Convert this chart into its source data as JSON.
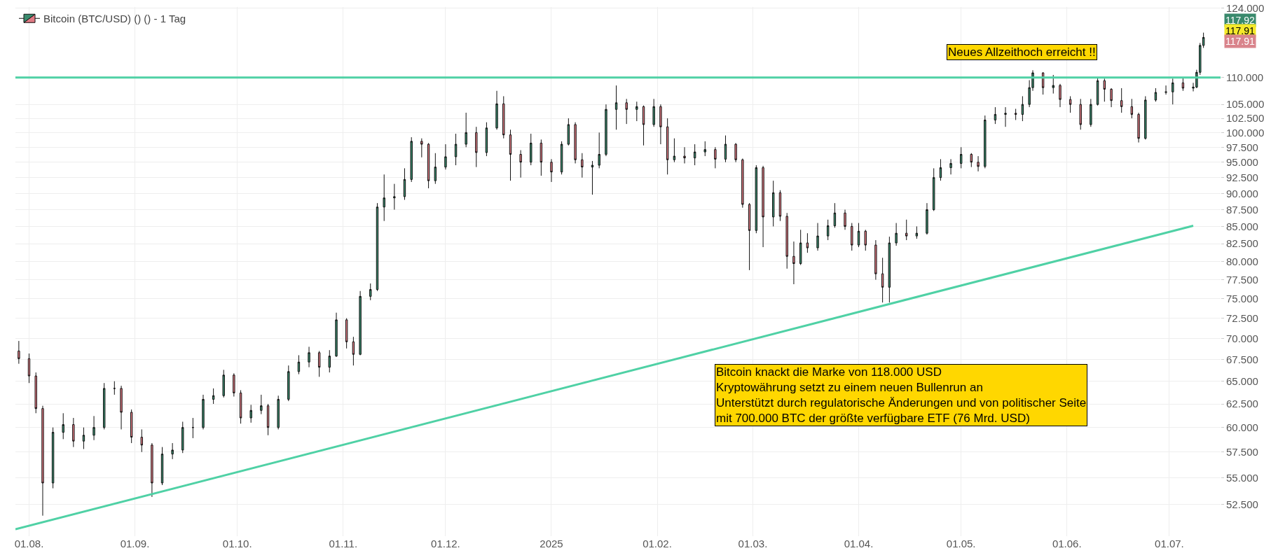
{
  "chart_data": {
    "type": "candlestick",
    "log": "y",
    "grid": true,
    "legend": "top left",
    "xlim": [
      "2024-07-28",
      "2025-07-16"
    ],
    "xticks": [
      {
        "value": "2024-08-01",
        "label": "01.08."
      },
      {
        "value": "2024-09-01",
        "label": "01.09."
      },
      {
        "value": "2024-10-01",
        "label": "01.10."
      },
      {
        "value": "2024-11-01",
        "label": "01.11."
      },
      {
        "value": "2024-12-01",
        "label": "01.12."
      },
      {
        "value": "2025-01-01",
        "label": "2025"
      },
      {
        "value": "2025-02-01",
        "label": "01.02."
      },
      {
        "value": "2025-03-01",
        "label": "01.03."
      },
      {
        "value": "2025-04-01",
        "label": "01.04."
      },
      {
        "value": "2025-05-01",
        "label": "01.05."
      },
      {
        "value": "2025-06-01",
        "label": "01.06."
      },
      {
        "value": "2025-07-01",
        "label": "01.07."
      }
    ],
    "ylim": [
      49.7,
      124.3
    ],
    "yticks": [
      {
        "value": 52.5,
        "label": "52.500"
      },
      {
        "value": 55,
        "label": "55.000"
      },
      {
        "value": 57.5,
        "label": "57.500"
      },
      {
        "value": 60,
        "label": "60.000"
      },
      {
        "value": 62.5,
        "label": "62.500"
      },
      {
        "value": 65,
        "label": "65.000"
      },
      {
        "value": 67.5,
        "label": "67.500"
      },
      {
        "value": 70,
        "label": "70.000"
      },
      {
        "value": 72.5,
        "label": "72.500"
      },
      {
        "value": 75,
        "label": "75.000"
      },
      {
        "value": 77.5,
        "label": "77.500"
      },
      {
        "value": 80,
        "label": "80.000"
      },
      {
        "value": 82.5,
        "label": "82.500"
      },
      {
        "value": 85,
        "label": "85.000"
      },
      {
        "value": 87.5,
        "label": "87.500"
      },
      {
        "value": 90,
        "label": "90.000"
      },
      {
        "value": 92.5,
        "label": "92.500"
      },
      {
        "value": 95,
        "label": "95.000"
      },
      {
        "value": 97.5,
        "label": "97.500"
      },
      {
        "value": 100,
        "label": "100.000"
      },
      {
        "value": 102.5,
        "label": "102.500"
      },
      {
        "value": 105,
        "label": "105.000"
      },
      {
        "value": 110,
        "label": "110.000"
      },
      {
        "value": 124,
        "label": "124.000"
      }
    ],
    "ref_lines": [
      {
        "axis": "y",
        "value": 110,
        "color": "#4fd1a5"
      }
    ],
    "annotations": [
      "Neues Allzeithoch erreicht !!",
      "117.92",
      "117.91",
      "117.91",
      "Bitcoin knackt die Marke von 118.000 USD\nKryptowährung setzt zu einem neuen Bullenrun an\nUnterstützt durch regulatorische Änderungen und von politischer Seite\nmit 700.000 BTC der größte verfügbare ETF (76 Mrd. USD)"
    ],
    "series": [
      {
        "name": "Bitcoin (BTC/USD) () () - 1 Tag",
        "type": "candlestick",
        "x": [
          "2024-07-29",
          "2024-08-01",
          "2024-08-03",
          "2024-08-05",
          "2024-08-08",
          "2024-08-11",
          "2024-08-14",
          "2024-08-17",
          "2024-08-20",
          "2024-08-23",
          "2024-08-26",
          "2024-08-28",
          "2024-08-31",
          "2024-09-03",
          "2024-09-06",
          "2024-09-09",
          "2024-09-12",
          "2024-09-15",
          "2024-09-18",
          "2024-09-21",
          "2024-09-24",
          "2024-09-27",
          "2024-09-30",
          "2024-10-02",
          "2024-10-05",
          "2024-10-08",
          "2024-10-10",
          "2024-10-13",
          "2024-10-16",
          "2024-10-19",
          "2024-10-22",
          "2024-10-25",
          "2024-10-28",
          "2024-10-30",
          "2024-11-02",
          "2024-11-04",
          "2024-11-06",
          "2024-11-09",
          "2024-11-11",
          "2024-11-13",
          "2024-11-16",
          "2024-11-19",
          "2024-11-21",
          "2024-11-24",
          "2024-11-26",
          "2024-11-28",
          "2024-12-01",
          "2024-12-04",
          "2024-12-07",
          "2024-12-10",
          "2024-12-13",
          "2024-12-16",
          "2024-12-18",
          "2024-12-20",
          "2024-12-23",
          "2024-12-26",
          "2024-12-29",
          "2025-01-01",
          "2025-01-04",
          "2025-01-06",
          "2025-01-08",
          "2025-01-10",
          "2025-01-13",
          "2025-01-15",
          "2025-01-17",
          "2025-01-20",
          "2025-01-23",
          "2025-01-26",
          "2025-01-28",
          "2025-01-31",
          "2025-02-02",
          "2025-02-04",
          "2025-02-06",
          "2025-02-09",
          "2025-02-12",
          "2025-02-15",
          "2025-02-18",
          "2025-02-21",
          "2025-02-24",
          "2025-02-26",
          "2025-02-28",
          "2025-03-02",
          "2025-03-04",
          "2025-03-07",
          "2025-03-09",
          "2025-03-11",
          "2025-03-13",
          "2025-03-15",
          "2025-03-17",
          "2025-03-20",
          "2025-03-23",
          "2025-03-25",
          "2025-03-28",
          "2025-03-30",
          "2025-04-01",
          "2025-04-03",
          "2025-04-06",
          "2025-04-08",
          "2025-04-10",
          "2025-04-12",
          "2025-04-15",
          "2025-04-18",
          "2025-04-21",
          "2025-04-23",
          "2025-04-25",
          "2025-04-28",
          "2025-05-01",
          "2025-05-04",
          "2025-05-06",
          "2025-05-08",
          "2025-05-11",
          "2025-05-14",
          "2025-05-17",
          "2025-05-19",
          "2025-05-21",
          "2025-05-22",
          "2025-05-25",
          "2025-05-28",
          "2025-05-30",
          "2025-06-02",
          "2025-06-05",
          "2025-06-08",
          "2025-06-10",
          "2025-06-12",
          "2025-06-14",
          "2025-06-17",
          "2025-06-20",
          "2025-06-22",
          "2025-06-24",
          "2025-06-27",
          "2025-06-30",
          "2025-07-02",
          "2025-07-05",
          "2025-07-08",
          "2025-07-09",
          "2025-07-10",
          "2025-07-11"
        ],
        "ohlc": [
          [
            68.5,
            69.7,
            67.0,
            67.6
          ],
          [
            67.6,
            68.2,
            64.8,
            65.6
          ],
          [
            65.6,
            66.0,
            61.5,
            62.0
          ],
          [
            62.0,
            62.3,
            51.5,
            54.5
          ],
          [
            54.5,
            60.0,
            54.0,
            59.5
          ],
          [
            59.5,
            61.5,
            58.8,
            60.3
          ],
          [
            60.3,
            61.0,
            58.0,
            58.6
          ],
          [
            58.6,
            60.0,
            57.8,
            59.2
          ],
          [
            59.2,
            61.2,
            58.7,
            60.0
          ],
          [
            60.0,
            64.8,
            59.8,
            64.2
          ],
          [
            64.2,
            65.0,
            63.5,
            64.2
          ],
          [
            64.2,
            64.5,
            59.8,
            61.6
          ],
          [
            61.6,
            61.9,
            58.4,
            59.0
          ],
          [
            59.0,
            59.8,
            57.5,
            58.2
          ],
          [
            58.2,
            58.4,
            53.2,
            54.5
          ],
          [
            54.5,
            58.0,
            54.3,
            57.3
          ],
          [
            57.3,
            58.4,
            56.8,
            57.7
          ],
          [
            57.7,
            60.6,
            57.4,
            60.0
          ],
          [
            60.0,
            61.0,
            58.9,
            60.0
          ],
          [
            60.0,
            63.5,
            59.8,
            63.0
          ],
          [
            63.0,
            64.2,
            62.5,
            63.4
          ],
          [
            63.4,
            66.3,
            63.2,
            65.7
          ],
          [
            65.7,
            65.9,
            63.3,
            63.7
          ],
          [
            63.7,
            64.0,
            60.4,
            61.0
          ],
          [
            61.0,
            62.4,
            60.5,
            61.8
          ],
          [
            61.8,
            63.5,
            61.4,
            62.3
          ],
          [
            62.3,
            62.5,
            59.2,
            60.0
          ],
          [
            60.0,
            63.4,
            59.8,
            63.0
          ],
          [
            63.0,
            66.8,
            62.8,
            66.1
          ],
          [
            66.1,
            68.0,
            65.8,
            67.2
          ],
          [
            67.2,
            69.0,
            66.6,
            68.3
          ],
          [
            68.3,
            68.5,
            65.5,
            66.6
          ],
          [
            66.6,
            68.6,
            66.0,
            67.9
          ],
          [
            67.9,
            73.2,
            67.8,
            72.3
          ],
          [
            72.3,
            72.5,
            68.8,
            69.6
          ],
          [
            69.6,
            70.2,
            66.8,
            68.1
          ],
          [
            68.1,
            76.0,
            68.0,
            75.3
          ],
          [
            75.3,
            77.0,
            74.8,
            76.2
          ],
          [
            76.2,
            88.5,
            76.0,
            87.9
          ],
          [
            87.9,
            93.0,
            85.8,
            89.3
          ],
          [
            89.3,
            91.5,
            87.5,
            89.5
          ],
          [
            89.5,
            94.0,
            89.0,
            92.2
          ],
          [
            92.2,
            99.2,
            91.8,
            98.5
          ],
          [
            98.5,
            99.0,
            95.8,
            98.0
          ],
          [
            98.0,
            98.2,
            90.8,
            92.0
          ],
          [
            92.0,
            96.5,
            91.5,
            94.2
          ],
          [
            94.2,
            98.0,
            93.8,
            95.9
          ],
          [
            95.9,
            99.8,
            94.5,
            98.0
          ],
          [
            98.0,
            103.5,
            97.5,
            100.0
          ],
          [
            100.0,
            101.0,
            94.2,
            96.6
          ],
          [
            96.6,
            101.8,
            96.0,
            100.8
          ],
          [
            100.8,
            107.5,
            100.5,
            105.1
          ],
          [
            105.1,
            106.5,
            99.0,
            99.6
          ],
          [
            99.6,
            100.5,
            92.0,
            96.3
          ],
          [
            96.3,
            97.0,
            92.5,
            95.0
          ],
          [
            95.0,
            99.8,
            94.5,
            98.2
          ],
          [
            98.2,
            98.8,
            92.8,
            95.0
          ],
          [
            95.0,
            95.5,
            91.8,
            93.4
          ],
          [
            93.4,
            98.5,
            93.0,
            98.0
          ],
          [
            98.0,
            102.5,
            97.8,
            101.4
          ],
          [
            101.4,
            101.8,
            94.8,
            95.4
          ],
          [
            95.4,
            96.5,
            92.5,
            94.2
          ],
          [
            94.2,
            95.2,
            89.8,
            94.5
          ],
          [
            94.5,
            100.0,
            94.0,
            96.3
          ],
          [
            96.3,
            105.0,
            96.0,
            104.1
          ],
          [
            104.1,
            108.5,
            100.5,
            105.3
          ],
          [
            105.3,
            106.0,
            101.5,
            104.1
          ],
          [
            104.1,
            105.5,
            102.0,
            104.6
          ],
          [
            104.6,
            104.8,
            97.8,
            101.4
          ],
          [
            101.4,
            106.0,
            101.0,
            104.6
          ],
          [
            104.6,
            105.0,
            98.0,
            101.0
          ],
          [
            101.0,
            102.5,
            93.0,
            95.4
          ],
          [
            95.4,
            99.0,
            95.0,
            96.0
          ],
          [
            96.0,
            97.5,
            94.8,
            95.7
          ],
          [
            95.7,
            98.0,
            94.5,
            96.7
          ],
          [
            96.7,
            98.5,
            96.0,
            97.1
          ],
          [
            97.1,
            97.5,
            94.0,
            95.5
          ],
          [
            95.5,
            99.5,
            95.0,
            98.0
          ],
          [
            98.0,
            98.2,
            95.0,
            95.4
          ],
          [
            95.4,
            95.6,
            87.8,
            88.3
          ],
          [
            88.3,
            88.5,
            78.8,
            84.4
          ],
          [
            84.4,
            94.5,
            84.0,
            94.1
          ],
          [
            94.1,
            94.4,
            82.0,
            86.4
          ],
          [
            86.4,
            92.0,
            85.0,
            90.1
          ],
          [
            90.1,
            90.5,
            85.8,
            86.5
          ],
          [
            86.5,
            87.0,
            79.0,
            80.7
          ],
          [
            80.7,
            82.8,
            76.9,
            79.7
          ],
          [
            79.7,
            84.5,
            79.5,
            82.6
          ],
          [
            82.6,
            84.0,
            81.2,
            81.9
          ],
          [
            81.9,
            85.5,
            81.5,
            83.6
          ],
          [
            83.6,
            86.0,
            83.0,
            85.1
          ],
          [
            85.1,
            88.5,
            84.8,
            87.0
          ],
          [
            87.0,
            87.5,
            84.5,
            85.0
          ],
          [
            85.0,
            85.5,
            81.5,
            82.3
          ],
          [
            82.3,
            85.5,
            82.0,
            84.3
          ],
          [
            84.3,
            84.5,
            81.5,
            82.3
          ],
          [
            82.3,
            83.0,
            77.5,
            78.3
          ],
          [
            78.3,
            80.5,
            74.5,
            76.5
          ],
          [
            76.5,
            83.5,
            74.5,
            82.6
          ],
          [
            82.6,
            85.5,
            82.2,
            84.0
          ],
          [
            84.0,
            86.0,
            83.0,
            83.6
          ],
          [
            83.6,
            85.0,
            83.2,
            84.0
          ],
          [
            84.0,
            88.5,
            83.8,
            87.5
          ],
          [
            87.5,
            94.0,
            87.3,
            92.5
          ],
          [
            92.5,
            95.5,
            92.0,
            94.1
          ],
          [
            94.1,
            95.5,
            93.0,
            94.8
          ],
          [
            94.8,
            97.5,
            94.0,
            96.3
          ],
          [
            96.3,
            96.5,
            94.2,
            95.0
          ],
          [
            95.0,
            96.0,
            93.5,
            94.3
          ],
          [
            94.3,
            103.0,
            94.0,
            102.2
          ],
          [
            102.2,
            104.5,
            101.5,
            103.2
          ],
          [
            103.2,
            104.5,
            101.0,
            103.4
          ],
          [
            103.4,
            104.2,
            102.2,
            103.2
          ],
          [
            103.2,
            106.5,
            102.0,
            105.0
          ],
          [
            105.0,
            109.5,
            104.5,
            108.1
          ],
          [
            108.1,
            111.4,
            107.5,
            110.9
          ],
          [
            110.9,
            111.0,
            106.8,
            108.1
          ],
          [
            108.1,
            110.5,
            107.0,
            108.5
          ],
          [
            108.5,
            108.8,
            104.5,
            105.9
          ],
          [
            105.9,
            106.5,
            103.5,
            105.0
          ],
          [
            105.0,
            106.0,
            100.5,
            101.4
          ],
          [
            101.4,
            106.0,
            101.0,
            105.0
          ],
          [
            105.0,
            110.0,
            104.8,
            109.4
          ],
          [
            109.4,
            109.8,
            105.5,
            107.8
          ],
          [
            107.8,
            108.0,
            104.5,
            105.7
          ],
          [
            105.7,
            108.0,
            103.5,
            104.6
          ],
          [
            104.6,
            106.0,
            102.5,
            103.2
          ],
          [
            103.2,
            103.5,
            98.3,
            99.0
          ],
          [
            99.0,
            106.5,
            98.8,
            105.8
          ],
          [
            105.8,
            108.0,
            105.5,
            107.2
          ],
          [
            107.2,
            108.5,
            106.8,
            107.3
          ],
          [
            107.3,
            109.8,
            105.0,
            109.0
          ],
          [
            109.0,
            110.0,
            107.5,
            108.0
          ],
          [
            108.0,
            109.0,
            107.4,
            108.2
          ],
          [
            108.2,
            111.5,
            108.0,
            111.0
          ],
          [
            111.0,
            116.8,
            110.5,
            116.3
          ],
          [
            116.3,
            118.9,
            115.8,
            117.92
          ]
        ]
      },
      {
        "type": "line",
        "color": "#4fd1a5",
        "x": [
          "2024-07-28",
          "2025-07-08"
        ],
        "values": [
          50.3,
          85.1
        ]
      }
    ]
  }
}
